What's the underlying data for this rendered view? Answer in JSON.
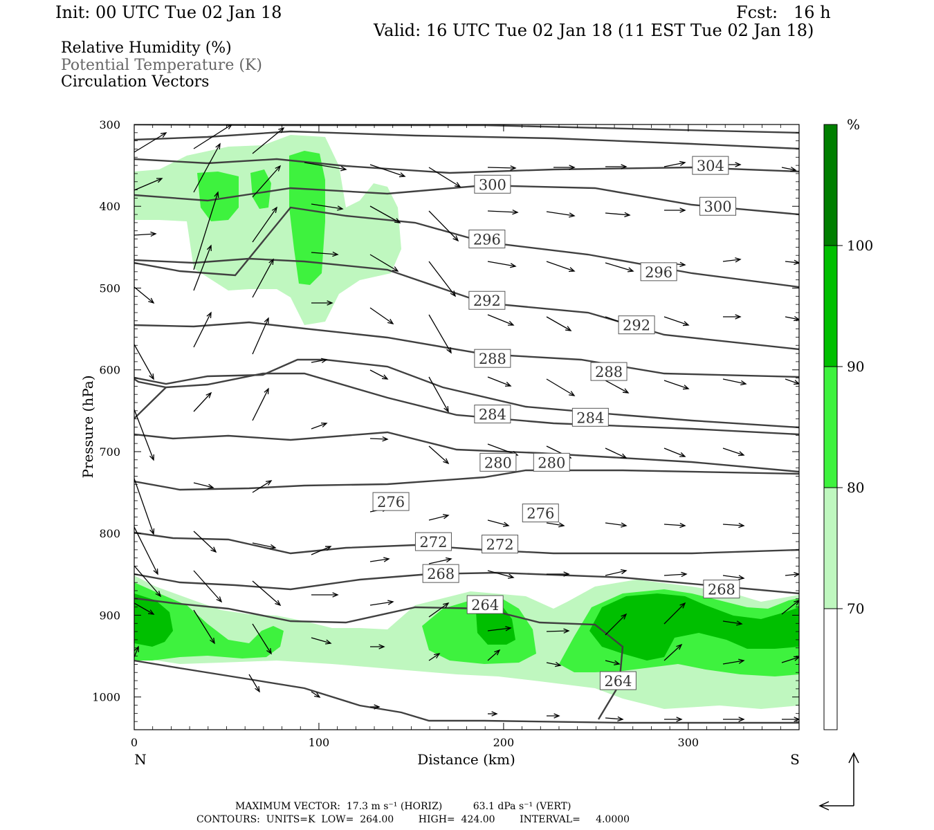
{
  "header": {
    "init": "Init: 00 UTC Tue 02 Jan 18",
    "fcst": "Fcst:   16 h",
    "valid": "Valid: 16 UTC Tue 02 Jan 18 (11 EST Tue 02 Jan 18)"
  },
  "legend": {
    "rh": "Relative Humidity (%)",
    "theta": "Potential Temperature (K)",
    "vectors": "Circulation Vectors"
  },
  "colors": {
    "rh_70": "#bff7bf",
    "rh_80": "#3ef23e",
    "rh_90": "#00bf00",
    "rh_100": "#007f00",
    "contour": "#404040"
  },
  "chart_data": {
    "type": "cross-section",
    "xlabel": "Distance (km)",
    "ylabel": "Pressure (hPa)",
    "xlim": [
      0,
      360
    ],
    "ylim": [
      300,
      1040
    ],
    "x_ticks": [
      "0",
      "100",
      "200",
      "300"
    ],
    "y_ticks": [
      "300",
      "400",
      "500",
      "600",
      "700",
      "800",
      "900",
      "1000"
    ],
    "x_left_label": "N",
    "x_right_label": "S",
    "colorbar": {
      "unit": "%",
      "levels": [
        "70",
        "80",
        "90",
        "100"
      ]
    },
    "theta_labels": [
      {
        "text": "304",
        "x": 312,
        "p": 350
      },
      {
        "text": "300",
        "x": 194,
        "p": 373
      },
      {
        "text": "300",
        "x": 316,
        "p": 400
      },
      {
        "text": "296",
        "x": 191,
        "p": 440
      },
      {
        "text": "296",
        "x": 284,
        "p": 480
      },
      {
        "text": "292",
        "x": 191,
        "p": 515
      },
      {
        "text": "292",
        "x": 272,
        "p": 545
      },
      {
        "text": "288",
        "x": 194,
        "p": 586
      },
      {
        "text": "288",
        "x": 257,
        "p": 602
      },
      {
        "text": "284",
        "x": 194,
        "p": 654
      },
      {
        "text": "284",
        "x": 247,
        "p": 658
      },
      {
        "text": "280",
        "x": 197,
        "p": 713
      },
      {
        "text": "280",
        "x": 226,
        "p": 713
      },
      {
        "text": "276",
        "x": 139,
        "p": 761
      },
      {
        "text": "276",
        "x": 220,
        "p": 775
      },
      {
        "text": "272",
        "x": 162,
        "p": 810
      },
      {
        "text": "272",
        "x": 198,
        "p": 813
      },
      {
        "text": "268",
        "x": 166,
        "p": 849
      },
      {
        "text": "268",
        "x": 318,
        "p": 868
      },
      {
        "text": "264",
        "x": 190,
        "p": 887
      },
      {
        "text": "264",
        "x": 262,
        "p": 980
      }
    ],
    "footer": {
      "max_vector": "MAXIMUM VECTOR:  17.3 m s⁻¹ (HORIZ)          63.1 dPa s⁻¹ (VERT)",
      "contours": "CONTOURS:  UNITS=K  LOW=  264.00        HIGH=  424.00        INTERVAL=     4.0000"
    }
  }
}
